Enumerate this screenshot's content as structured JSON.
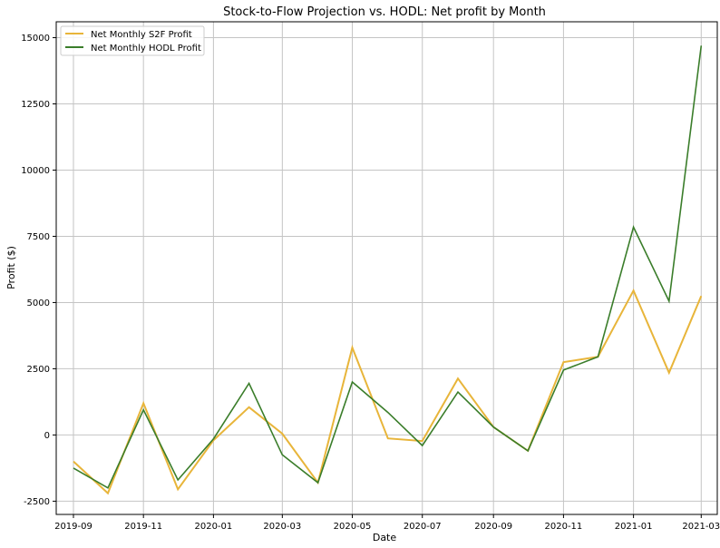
{
  "chart_data": {
    "type": "line",
    "title": "Stock-to-Flow Projection vs. HODL: Net profit by Month",
    "xlabel": "Date",
    "ylabel": "Profit ($)",
    "x_ticks": [
      "2019-09",
      "2019-11",
      "2020-01",
      "2020-03",
      "2020-05",
      "2020-07",
      "2020-09",
      "2020-11",
      "2021-01",
      "2021-03"
    ],
    "y_ticks": [
      -2500,
      0,
      2500,
      5000,
      7500,
      10000,
      12500,
      15000
    ],
    "xlim": [
      "2019-08-17",
      "2021-03-15"
    ],
    "ylim": [
      -3000,
      15600
    ],
    "grid": true,
    "legend_position": "top-left",
    "x": [
      "2019-09-01",
      "2019-10-01",
      "2019-11-01",
      "2019-12-01",
      "2020-01-01",
      "2020-02-01",
      "2020-03-01",
      "2020-04-01",
      "2020-05-01",
      "2020-06-01",
      "2020-07-01",
      "2020-08-01",
      "2020-09-01",
      "2020-10-01",
      "2020-11-01",
      "2020-12-01",
      "2021-01-01",
      "2021-02-01",
      "2021-03-01"
    ],
    "series": [
      {
        "name": "Net Monthly S2F Profit",
        "color": "#e8b53a",
        "values": [
          -1000,
          -2200,
          1200,
          -2050,
          -200,
          1050,
          50,
          -1800,
          3300,
          -130,
          -230,
          2130,
          300,
          -600,
          2750,
          2950,
          5450,
          2350,
          5250
        ]
      },
      {
        "name": "Net Monthly HODL Profit",
        "color": "#3a7d2a",
        "values": [
          -1250,
          -2000,
          950,
          -1700,
          -150,
          1950,
          -750,
          -1800,
          2000,
          850,
          -400,
          1620,
          300,
          -600,
          2450,
          2950,
          7850,
          5050,
          14700
        ]
      }
    ]
  }
}
